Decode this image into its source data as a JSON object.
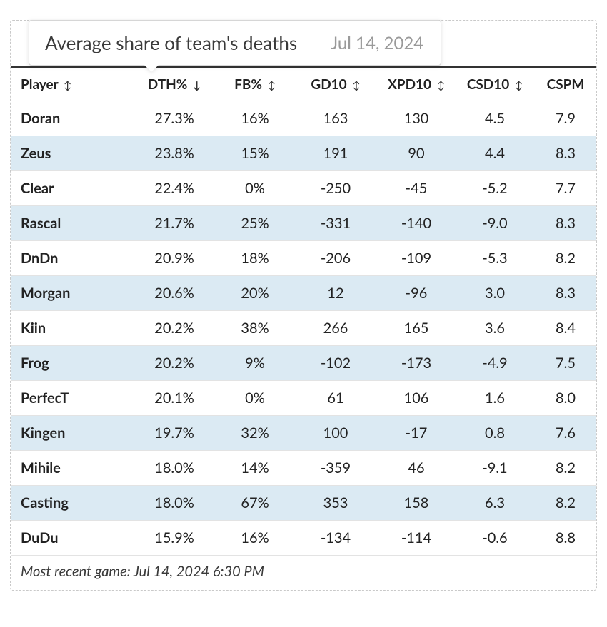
{
  "tooltip": {
    "text": "Average share of team's deaths",
    "date": "Jul 14, 2024"
  },
  "columns": [
    {
      "key": "player",
      "label": "Player",
      "sort": "both",
      "class": "player-col"
    },
    {
      "key": "dth",
      "label": "DTH%",
      "sort": "down",
      "class": "dth-col"
    },
    {
      "key": "fb",
      "label": "FB%",
      "sort": "both",
      "class": "fb-col"
    },
    {
      "key": "gd10",
      "label": "GD10",
      "sort": "both",
      "class": "gd-col"
    },
    {
      "key": "xpd10",
      "label": "XPD10",
      "sort": "both",
      "class": "xpd-col"
    },
    {
      "key": "csd10",
      "label": "CSD10",
      "sort": "both",
      "class": "csd-col"
    },
    {
      "key": "cspm",
      "label": "CSPM",
      "sort": "none",
      "class": "cspm-col"
    }
  ],
  "rows": [
    {
      "player": "Doran",
      "dth": "27.3%",
      "fb": "16%",
      "gd10": "163",
      "xpd10": "130",
      "csd10": "4.5",
      "cspm": "7.9"
    },
    {
      "player": "Zeus",
      "dth": "23.8%",
      "fb": "15%",
      "gd10": "191",
      "xpd10": "90",
      "csd10": "4.4",
      "cspm": "8.3"
    },
    {
      "player": "Clear",
      "dth": "22.4%",
      "fb": "0%",
      "gd10": "-250",
      "xpd10": "-45",
      "csd10": "-5.2",
      "cspm": "7.7"
    },
    {
      "player": "Rascal",
      "dth": "21.7%",
      "fb": "25%",
      "gd10": "-331",
      "xpd10": "-140",
      "csd10": "-9.0",
      "cspm": "8.3"
    },
    {
      "player": "DnDn",
      "dth": "20.9%",
      "fb": "18%",
      "gd10": "-206",
      "xpd10": "-109",
      "csd10": "-5.3",
      "cspm": "8.2"
    },
    {
      "player": "Morgan",
      "dth": "20.6%",
      "fb": "20%",
      "gd10": "12",
      "xpd10": "-96",
      "csd10": "3.0",
      "cspm": "8.3"
    },
    {
      "player": "Kiin",
      "dth": "20.2%",
      "fb": "38%",
      "gd10": "266",
      "xpd10": "165",
      "csd10": "3.6",
      "cspm": "8.4"
    },
    {
      "player": "Frog",
      "dth": "20.2%",
      "fb": "9%",
      "gd10": "-102",
      "xpd10": "-173",
      "csd10": "-4.9",
      "cspm": "7.5"
    },
    {
      "player": "PerfecT",
      "dth": "20.1%",
      "fb": "0%",
      "gd10": "61",
      "xpd10": "106",
      "csd10": "1.6",
      "cspm": "8.0"
    },
    {
      "player": "Kingen",
      "dth": "19.7%",
      "fb": "32%",
      "gd10": "100",
      "xpd10": "-17",
      "csd10": "0.8",
      "cspm": "7.6"
    },
    {
      "player": "Mihile",
      "dth": "18.0%",
      "fb": "14%",
      "gd10": "-359",
      "xpd10": "46",
      "csd10": "-9.1",
      "cspm": "8.2"
    },
    {
      "player": "Casting",
      "dth": "18.0%",
      "fb": "67%",
      "gd10": "353",
      "xpd10": "158",
      "csd10": "6.3",
      "cspm": "8.2"
    },
    {
      "player": "DuDu",
      "dth": "15.9%",
      "fb": "16%",
      "gd10": "-134",
      "xpd10": "-114",
      "csd10": "-0.6",
      "cspm": "8.8"
    }
  ],
  "footnote": "Most recent game: Jul 14, 2024 6:30 PM",
  "styling": {
    "alt_row_bg": "#dbeaf3",
    "border_color": "#bfbfbf",
    "header_top_border": "#333333",
    "dashed_border": "#c9c9c9",
    "text_color": "#222222",
    "muted_text": "#9a9a9a",
    "font_size_header": 19,
    "font_size_cell": 20,
    "font_size_tooltip": 26
  }
}
